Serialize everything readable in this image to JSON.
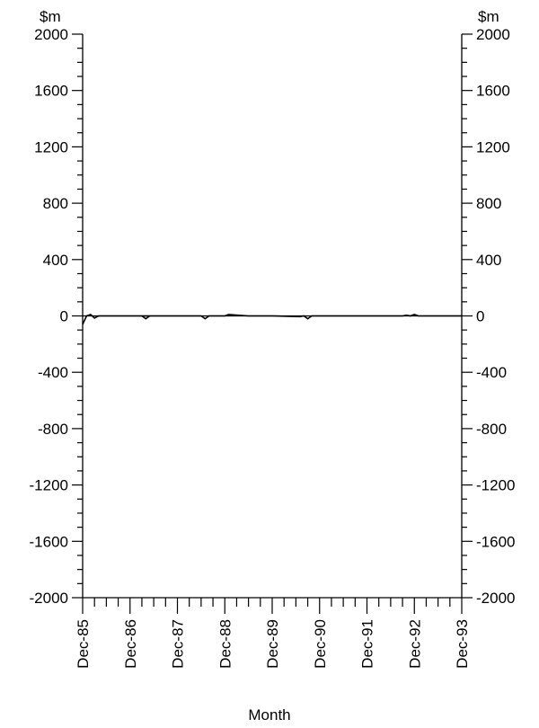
{
  "chart_data": {
    "type": "line",
    "title": "",
    "xlabel": "Month",
    "ylabel_left": "$m",
    "ylabel_right": "$m",
    "ylim": [
      -2000,
      2000
    ],
    "yticks": [
      -2000,
      -1600,
      -1200,
      -800,
      -400,
      0,
      400,
      800,
      1200,
      1600,
      2000
    ],
    "ytick_labels": [
      "-2000",
      "-1600",
      "-1200",
      "-800",
      "-400",
      "0",
      "400",
      "800",
      "1200",
      "1600",
      "2000"
    ],
    "xlim": [
      "Dec-85",
      "Dec-93"
    ],
    "xtick_labels": [
      "Dec-85",
      "Dec-86",
      "Dec-87",
      "Dec-88",
      "Dec-89",
      "Dec-90",
      "Dec-91",
      "Dec-92",
      "Dec-93"
    ],
    "grid": false,
    "series": [
      {
        "x": [
          "Dec-85",
          "Jan-86",
          "Feb-86",
          "Mar-86",
          "Apr-86",
          "Jun-86",
          "Dec-86",
          "Jun-87",
          "Jan-87",
          "Feb-87",
          "Mar-87",
          "Apr-87",
          "May-87",
          "Jun-87",
          "Jan-88",
          "Jun-88",
          "Jul-88",
          "Aug-88",
          "Dec-88",
          "Jan-89",
          "Jun-89",
          "Dec-89",
          "Jul-90",
          "Aug-90",
          "Sep-90",
          "Oct-90",
          "Nov-90",
          "Dec-90",
          "Jun-91",
          "Dec-91",
          "Sep-92",
          "Oct-92",
          "Nov-92",
          "Dec-92",
          "Jan-93",
          "Jun-93",
          "Dec-93"
        ],
        "values": [
          -60,
          0,
          10,
          -15,
          0,
          0,
          0,
          0,
          0,
          0,
          0,
          -20,
          0,
          0,
          0,
          0,
          -20,
          0,
          0,
          10,
          0,
          0,
          -5,
          0,
          -20,
          0,
          0,
          0,
          0,
          0,
          0,
          5,
          0,
          10,
          0,
          0,
          0
        ]
      }
    ]
  }
}
